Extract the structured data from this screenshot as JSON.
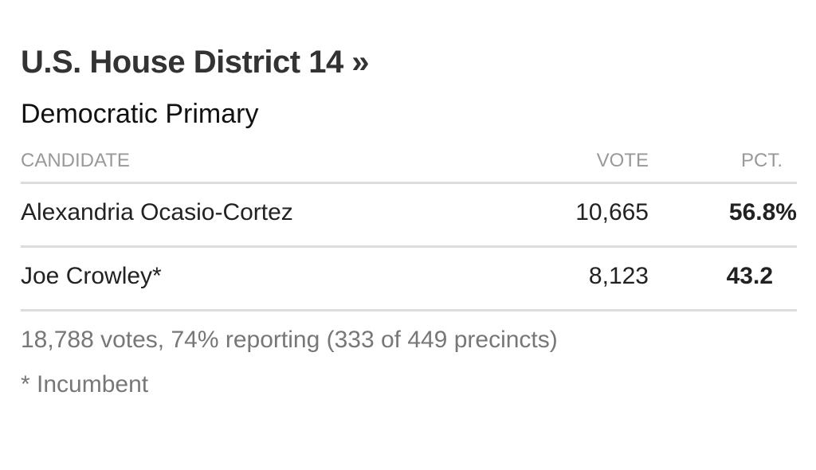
{
  "header": {
    "title": "U.S. House District 14 »",
    "subtitle": "Democratic Primary"
  },
  "table": {
    "columns": [
      "CANDIDATE",
      "VOTE",
      "PCT."
    ],
    "rows": [
      [
        "Alexandria Ocasio-Cortez",
        "10,665",
        "56.8%"
      ],
      [
        "Joe Crowley*",
        "8,123",
        "43.2"
      ]
    ]
  },
  "footer": {
    "summary": "18,788 votes, 74% reporting (333 of 449 precincts)",
    "note": "* Incumbent"
  }
}
